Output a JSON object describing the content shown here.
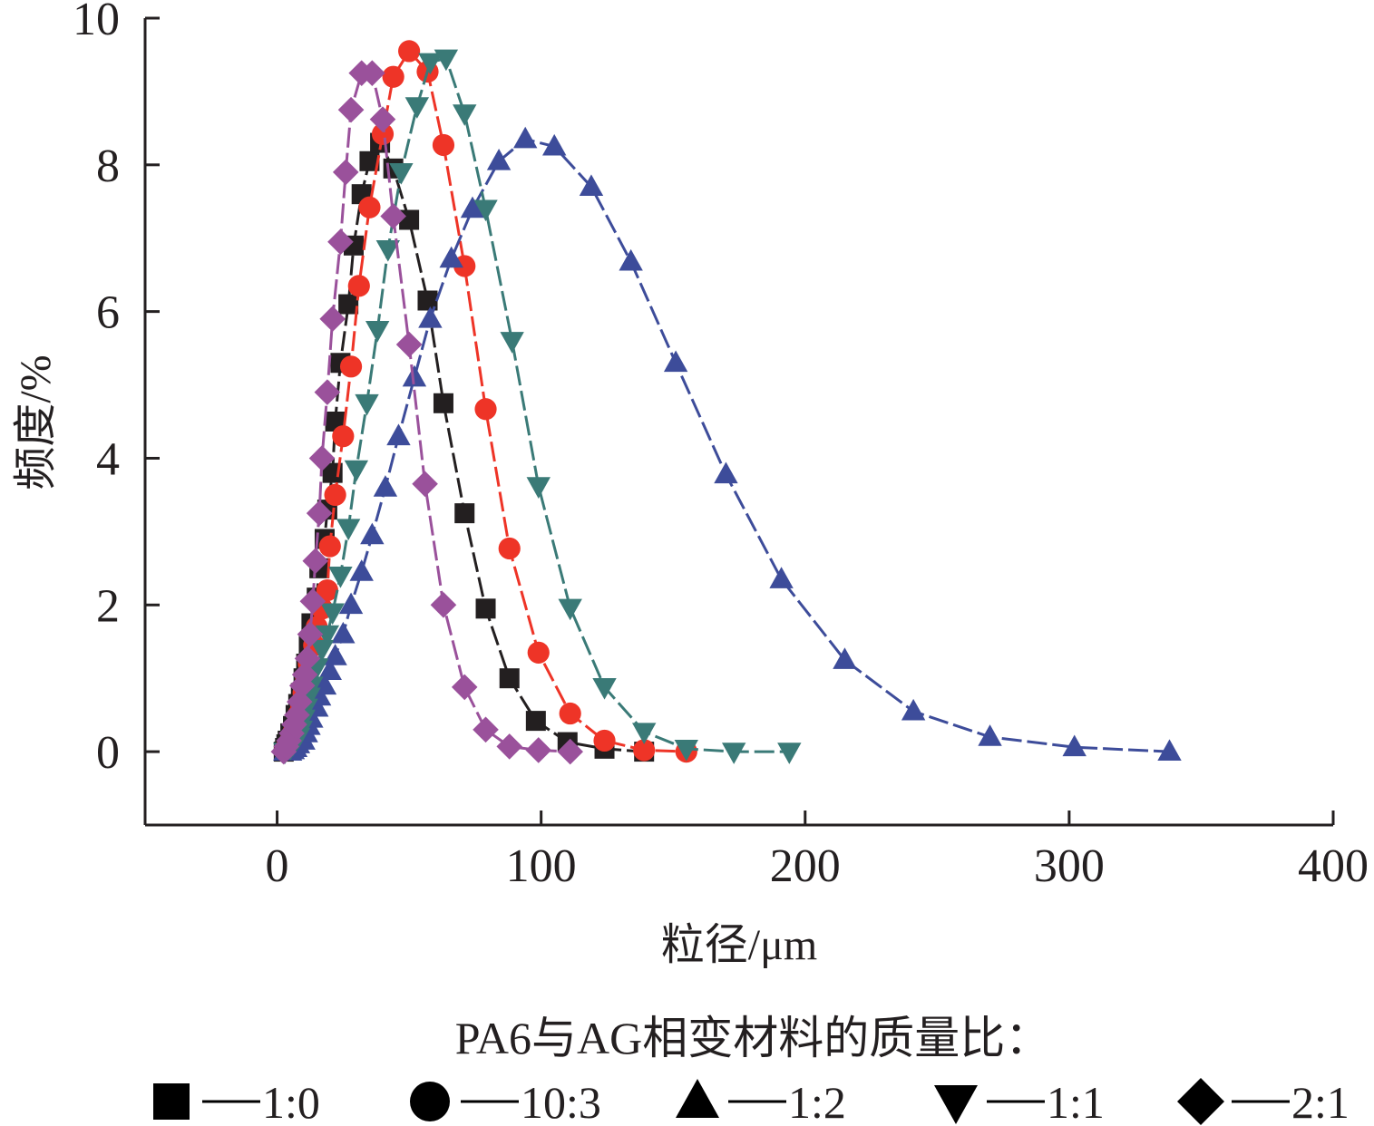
{
  "chart_data": {
    "type": "line",
    "xlabel": "粒径/μm",
    "ylabel": "频度/%",
    "xlim": [
      -50,
      400
    ],
    "ylim": [
      -1,
      10
    ],
    "x_ticks": [
      0,
      100,
      200,
      300,
      400
    ],
    "y_ticks": [
      0,
      2,
      4,
      6,
      8,
      10
    ],
    "grid": false,
    "legend_title": "PA6与AG相变材料的质量比：",
    "legend_position": "bottom",
    "series": [
      {
        "name": "1:0",
        "color": "#231f20",
        "marker": "square",
        "points": [
          [
            2.5,
            0
          ],
          [
            3,
            0.05
          ],
          [
            3.5,
            0.1
          ],
          [
            4,
            0.15
          ],
          [
            5,
            0.25
          ],
          [
            6,
            0.35
          ],
          [
            7,
            0.5
          ],
          [
            8,
            0.65
          ],
          [
            9,
            0.8
          ],
          [
            10,
            1.0
          ],
          [
            11,
            1.2
          ],
          [
            12,
            1.45
          ],
          [
            13,
            1.75
          ],
          [
            15,
            2.1
          ],
          [
            16,
            2.5
          ],
          [
            18,
            2.9
          ],
          [
            19,
            3.3
          ],
          [
            21,
            3.8
          ],
          [
            22,
            4.5
          ],
          [
            24,
            5.3
          ],
          [
            27,
            6.1
          ],
          [
            29,
            6.9
          ],
          [
            32,
            7.6
          ],
          [
            35,
            8.05
          ],
          [
            39,
            8.3
          ],
          [
            44,
            7.95
          ],
          [
            50,
            7.25
          ],
          [
            57,
            6.15
          ],
          [
            63,
            4.75
          ],
          [
            71,
            3.25
          ],
          [
            79,
            1.95
          ],
          [
            88,
            1.0
          ],
          [
            98,
            0.42
          ],
          [
            110,
            0.13
          ],
          [
            124,
            0.04
          ],
          [
            139,
            0.0
          ]
        ]
      },
      {
        "name": "10:3",
        "color": "#ee3427",
        "marker": "circle",
        "points": [
          [
            3,
            0.03
          ],
          [
            4,
            0.08
          ],
          [
            5,
            0.15
          ],
          [
            6,
            0.25
          ],
          [
            7,
            0.35
          ],
          [
            8,
            0.5
          ],
          [
            9,
            0.65
          ],
          [
            10,
            0.8
          ],
          [
            11,
            1.0
          ],
          [
            12,
            1.2
          ],
          [
            14,
            1.45
          ],
          [
            15,
            1.7
          ],
          [
            17,
            1.95
          ],
          [
            19,
            2.2
          ],
          [
            20,
            2.8
          ],
          [
            22,
            3.5
          ],
          [
            25,
            4.3
          ],
          [
            28,
            5.25
          ],
          [
            31,
            6.35
          ],
          [
            35,
            7.42
          ],
          [
            40,
            8.42
          ],
          [
            44,
            9.2
          ],
          [
            50,
            9.55
          ],
          [
            57,
            9.27
          ],
          [
            63,
            8.27
          ],
          [
            71,
            6.62
          ],
          [
            79,
            4.67
          ],
          [
            88,
            2.77
          ],
          [
            99,
            1.35
          ],
          [
            111,
            0.52
          ],
          [
            124,
            0.15
          ],
          [
            139,
            0.02
          ],
          [
            155,
            0.0
          ]
        ]
      },
      {
        "name": "1:2",
        "color": "#3d4c9a",
        "marker": "triangle-up",
        "points": [
          [
            3,
            0.0
          ],
          [
            5,
            0.0
          ],
          [
            6,
            0.02
          ],
          [
            7,
            0.05
          ],
          [
            8,
            0.1
          ],
          [
            10,
            0.15
          ],
          [
            11,
            0.25
          ],
          [
            12,
            0.35
          ],
          [
            13,
            0.45
          ],
          [
            15,
            0.6
          ],
          [
            16,
            0.75
          ],
          [
            18,
            0.9
          ],
          [
            20,
            1.1
          ],
          [
            22,
            1.3
          ],
          [
            25,
            1.6
          ],
          [
            28,
            2.0
          ],
          [
            32,
            2.45
          ],
          [
            36,
            2.95
          ],
          [
            41,
            3.6
          ],
          [
            46,
            4.3
          ],
          [
            52,
            5.1
          ],
          [
            58,
            5.9
          ],
          [
            66,
            6.72
          ],
          [
            74,
            7.4
          ],
          [
            84,
            8.05
          ],
          [
            94,
            8.35
          ],
          [
            105,
            8.25
          ],
          [
            119,
            7.7
          ],
          [
            134,
            6.68
          ],
          [
            151,
            5.3
          ],
          [
            170,
            3.78
          ],
          [
            191,
            2.35
          ],
          [
            215,
            1.25
          ],
          [
            241,
            0.55
          ],
          [
            270,
            0.2
          ],
          [
            302,
            0.06
          ],
          [
            338,
            0.0
          ]
        ]
      },
      {
        "name": "1:1",
        "color": "#3a7a77",
        "marker": "triangle-down",
        "points": [
          [
            3,
            0.0
          ],
          [
            5,
            0.05
          ],
          [
            6,
            0.1
          ],
          [
            7,
            0.15
          ],
          [
            8,
            0.2
          ],
          [
            9,
            0.3
          ],
          [
            10,
            0.45
          ],
          [
            11,
            0.6
          ],
          [
            12,
            0.75
          ],
          [
            13,
            0.9
          ],
          [
            15,
            1.15
          ],
          [
            17,
            1.4
          ],
          [
            19,
            1.6
          ],
          [
            21,
            1.9
          ],
          [
            24,
            2.4
          ],
          [
            27,
            3.05
          ],
          [
            30,
            3.85
          ],
          [
            34,
            4.75
          ],
          [
            38,
            5.75
          ],
          [
            42,
            6.85
          ],
          [
            47,
            7.9
          ],
          [
            53,
            8.8
          ],
          [
            58,
            9.4
          ],
          [
            64,
            9.45
          ],
          [
            71,
            8.7
          ],
          [
            79,
            7.4
          ],
          [
            89,
            5.6
          ],
          [
            99,
            3.62
          ],
          [
            111,
            1.96
          ],
          [
            124,
            0.88
          ],
          [
            139,
            0.27
          ],
          [
            155,
            0.04
          ],
          [
            173,
            0.0
          ],
          [
            194,
            0.0
          ]
        ]
      },
      {
        "name": "2:1",
        "color": "#9a519b",
        "marker": "diamond",
        "points": [
          [
            2.5,
            0
          ],
          [
            3.5,
            0.07
          ],
          [
            4.5,
            0.15
          ],
          [
            5.5,
            0.25
          ],
          [
            6.5,
            0.37
          ],
          [
            7.5,
            0.5
          ],
          [
            8.5,
            0.68
          ],
          [
            9.5,
            0.9
          ],
          [
            10.5,
            1.05
          ],
          [
            11.5,
            1.27
          ],
          [
            12.5,
            1.6
          ],
          [
            13.5,
            2.05
          ],
          [
            14.5,
            2.6
          ],
          [
            16,
            3.25
          ],
          [
            17,
            4.0
          ],
          [
            19,
            4.9
          ],
          [
            21,
            5.9
          ],
          [
            24,
            6.95
          ],
          [
            26,
            7.9
          ],
          [
            28,
            8.75
          ],
          [
            32,
            9.25
          ],
          [
            36,
            9.25
          ],
          [
            40,
            8.62
          ],
          [
            44,
            7.3
          ],
          [
            50,
            5.55
          ],
          [
            56,
            3.65
          ],
          [
            63,
            2.0
          ],
          [
            71,
            0.88
          ],
          [
            79,
            0.3
          ],
          [
            88,
            0.07
          ],
          [
            99,
            0.02
          ],
          [
            111,
            0.0
          ]
        ]
      }
    ]
  }
}
